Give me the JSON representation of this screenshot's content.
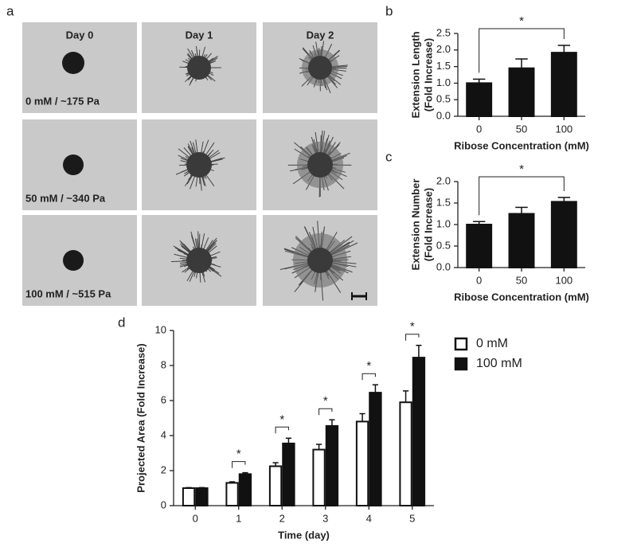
{
  "panel_labels": [
    "a",
    "b",
    "c",
    "d"
  ],
  "images": {
    "column_labels": [
      "Day 0",
      "Day 1",
      "Day 2"
    ],
    "row_labels": [
      "0 mM / ~175 Pa",
      "50 mM / ~340 Pa",
      "100 mM / ~515 Pa"
    ]
  },
  "chart_data": [
    {
      "type": "bar",
      "categories": [
        "0",
        "50",
        "100"
      ],
      "values": [
        1.0,
        1.45,
        1.92
      ],
      "errors": [
        0.12,
        0.28,
        0.22
      ],
      "color": "#111111",
      "ylabel": [
        "Extension Length",
        "(Fold Increase)"
      ],
      "xlabel": "Ribose Concentration (mM)",
      "ylim": [
        0,
        2.5
      ],
      "yticks": [
        {
          "value": 0,
          "label": "0.0"
        },
        0.5,
        {
          "value": 1,
          "label": "1.0"
        },
        1.5,
        {
          "value": 2,
          "label": "2.0"
        },
        2.5
      ],
      "significance": [
        {
          "label": "*",
          "between": [
            "0",
            "100"
          ]
        }
      ]
    },
    {
      "type": "bar",
      "categories": [
        "0",
        "50",
        "100"
      ],
      "values": [
        1.0,
        1.25,
        1.53
      ],
      "errors": [
        0.07,
        0.15,
        0.1
      ],
      "color": "#111111",
      "ylabel": [
        "Extension Number",
        "(Fold Increase)"
      ],
      "xlabel": "Ribose Concentration (mM)",
      "ylim": [
        0,
        2
      ],
      "yticks": [
        {
          "value": 0,
          "label": "0.0"
        },
        0.5,
        {
          "value": 1,
          "label": "1.0"
        },
        1.5,
        {
          "value": 2,
          "label": "2.0"
        }
      ],
      "significance": [
        {
          "label": "*",
          "between": [
            "0",
            "100"
          ]
        }
      ]
    },
    {
      "type": "bar",
      "categories": [
        "0",
        "1",
        "2",
        "3",
        "4",
        "5"
      ],
      "series": [
        {
          "name": "0 mM",
          "color": "#ffffff",
          "values": [
            1.0,
            1.3,
            2.25,
            3.2,
            4.8,
            5.9
          ],
          "errors": [
            0.03,
            0.06,
            0.2,
            0.3,
            0.45,
            0.65
          ]
        },
        {
          "name": "100 mM",
          "color": "#111111",
          "values": [
            1.0,
            1.8,
            3.55,
            4.55,
            6.45,
            8.45
          ],
          "errors": [
            0.03,
            0.08,
            0.3,
            0.35,
            0.45,
            0.7
          ]
        }
      ],
      "ylabel": [
        "Projected Area (Fold Increase)"
      ],
      "xlabel": "Time (day)",
      "ylim": [
        0,
        10
      ],
      "yticks": [
        0,
        2,
        4,
        6,
        8,
        10
      ],
      "significance": [
        {
          "label": "*",
          "category": "1"
        },
        {
          "label": "*",
          "category": "2"
        },
        {
          "label": "*",
          "category": "3"
        },
        {
          "label": "*",
          "category": "4"
        },
        {
          "label": "*",
          "category": "5"
        }
      ]
    }
  ]
}
